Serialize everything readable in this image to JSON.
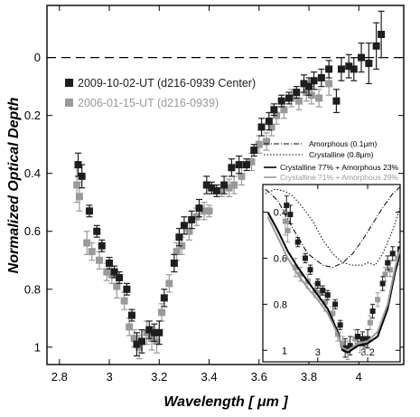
{
  "chart_data": {
    "type": "scatter",
    "ylabel": "Normalized Optical Depth",
    "xlabel": "Wavelength [ μm ]",
    "xlim": [
      2.75,
      4.18
    ],
    "ylim": [
      1.06,
      -0.18
    ],
    "y_inverted": true,
    "x_ticks": [
      "2.8",
      "3",
      "3.2",
      "3.4",
      "3.6",
      "3.8",
      "4"
    ],
    "x_tick_values": [
      2.8,
      3.0,
      3.2,
      3.4,
      3.6,
      3.8,
      4.0
    ],
    "y_ticks": [
      "0",
      "0.2",
      "0.4",
      "0.6",
      "0.8",
      "1"
    ],
    "y_tick_values": [
      0,
      0.2,
      0.4,
      0.6,
      0.8,
      1.0
    ],
    "zero_line": "dashed",
    "series": [
      {
        "name": "2009-10-02-UT (d216-0939 Center)",
        "color": "#1e1e1e",
        "marker": "square",
        "points": [
          [
            2.875,
            0.37,
            0.04
          ],
          [
            2.89,
            0.41,
            0.04
          ],
          [
            2.92,
            0.53,
            0.02
          ],
          [
            2.95,
            0.6,
            0.02
          ],
          [
            2.97,
            0.65,
            0.02
          ],
          [
            3.0,
            0.71,
            0.02
          ],
          [
            3.02,
            0.74,
            0.02
          ],
          [
            3.04,
            0.76,
            0.02
          ],
          [
            3.07,
            0.8,
            0.02
          ],
          [
            3.09,
            0.89,
            0.02
          ],
          [
            3.11,
            0.99,
            0.04
          ],
          [
            3.13,
            0.98,
            0.04
          ],
          [
            3.16,
            0.94,
            0.03
          ],
          [
            3.18,
            0.95,
            0.03
          ],
          [
            3.2,
            0.95,
            0.04
          ],
          [
            3.22,
            0.83,
            0.03
          ],
          [
            3.26,
            0.71,
            0.03
          ],
          [
            3.28,
            0.62,
            0.03
          ],
          [
            3.3,
            0.58,
            0.03
          ],
          [
            3.33,
            0.56,
            0.03
          ],
          [
            3.36,
            0.52,
            0.03
          ],
          [
            3.39,
            0.44,
            0.03
          ],
          [
            3.41,
            0.45,
            0.02
          ],
          [
            3.43,
            0.46,
            0.02
          ],
          [
            3.46,
            0.44,
            0.03
          ],
          [
            3.49,
            0.38,
            0.03
          ],
          [
            3.52,
            0.37,
            0.03
          ],
          [
            3.55,
            0.37,
            0.02
          ],
          [
            3.58,
            0.32,
            0.02
          ],
          [
            3.61,
            0.24,
            0.03
          ],
          [
            3.64,
            0.22,
            0.03
          ],
          [
            3.66,
            0.18,
            0.02
          ],
          [
            3.69,
            0.15,
            0.02
          ],
          [
            3.72,
            0.14,
            0.02
          ],
          [
            3.75,
            0.12,
            0.02
          ],
          [
            3.78,
            0.09,
            0.03
          ],
          [
            3.8,
            0.1,
            0.03
          ],
          [
            3.82,
            0.08,
            0.03
          ],
          [
            3.85,
            0.07,
            0.03
          ],
          [
            3.88,
            0.04,
            0.03
          ],
          [
            3.91,
            0.15,
            0.04
          ],
          [
            3.93,
            0.04,
            0.04
          ],
          [
            3.96,
            0.03,
            0.04
          ],
          [
            3.98,
            0.04,
            0.04
          ],
          [
            4.01,
            0.0,
            0.05
          ],
          [
            4.04,
            0.02,
            0.07
          ],
          [
            4.07,
            -0.04,
            0.08
          ],
          [
            4.09,
            -0.08,
            0.08
          ]
        ]
      },
      {
        "name": "2006-01-15-UT (d216-0939)",
        "color": "#9a9a9a",
        "marker": "square",
        "points": [
          [
            2.87,
            0.44,
            0.06
          ],
          [
            2.88,
            0.48,
            0.05
          ],
          [
            2.91,
            0.64,
            0.04
          ],
          [
            2.93,
            0.67,
            0.03
          ],
          [
            2.96,
            0.7,
            0.03
          ],
          [
            2.99,
            0.74,
            0.03
          ],
          [
            3.01,
            0.75,
            0.03
          ],
          [
            3.03,
            0.79,
            0.04
          ],
          [
            3.06,
            0.84,
            0.03
          ],
          [
            3.08,
            0.93,
            0.03
          ],
          [
            3.1,
            0.97,
            0.03
          ],
          [
            3.12,
            1.0,
            0.04
          ],
          [
            3.15,
            0.95,
            0.04
          ],
          [
            3.17,
            0.97,
            0.04
          ],
          [
            3.19,
            0.98,
            0.04
          ],
          [
            3.21,
            0.88,
            0.03
          ],
          [
            3.24,
            0.78,
            0.03
          ],
          [
            3.27,
            0.67,
            0.03
          ],
          [
            3.29,
            0.65,
            0.03
          ],
          [
            3.32,
            0.6,
            0.03
          ],
          [
            3.35,
            0.55,
            0.03
          ],
          [
            3.38,
            0.53,
            0.03
          ],
          [
            3.4,
            0.53,
            0.02
          ],
          [
            3.45,
            0.46,
            0.02
          ],
          [
            3.48,
            0.45,
            0.03
          ],
          [
            3.5,
            0.44,
            0.03
          ],
          [
            3.53,
            0.41,
            0.03
          ],
          [
            3.57,
            0.36,
            0.03
          ],
          [
            3.6,
            0.3,
            0.03
          ],
          [
            3.63,
            0.29,
            0.03
          ],
          [
            3.65,
            0.24,
            0.03
          ],
          [
            3.67,
            0.2,
            0.03
          ],
          [
            3.7,
            0.18,
            0.03
          ],
          [
            3.73,
            0.14,
            0.03
          ],
          [
            3.76,
            0.15,
            0.03
          ],
          [
            3.79,
            0.12,
            0.03
          ],
          [
            3.81,
            0.13,
            0.03
          ],
          [
            3.84,
            0.14,
            0.03
          ],
          [
            3.88,
            0.09,
            0.04
          ]
        ]
      }
    ],
    "legend": {
      "placement": "left",
      "entries": [
        {
          "label": "2009-10-02-UT (d216-0939 Center)",
          "color": "#1e1e1e"
        },
        {
          "label": "2006-01-15-UT (d216-0939)",
          "color": "#9a9a9a"
        }
      ]
    },
    "inset": {
      "placement": "bottom-right",
      "xlim": [
        2.78,
        3.33
      ],
      "ylim": [
        1.05,
        0.28
      ],
      "x_ticks": [
        "3",
        "3.2"
      ],
      "x_tick_values": [
        3.0,
        3.2
      ],
      "y_ticks": [
        "0.4",
        "0.6",
        "0.8",
        "1"
      ],
      "y_tick_values": [
        0.4,
        0.6,
        0.8,
        1.0
      ],
      "legend": [
        {
          "label": "Amorphous (0.1μm)",
          "style": "dashdot",
          "color": "#000000"
        },
        {
          "label": "Crystalline (0.8μm)",
          "style": "dotted",
          "color": "#000000"
        },
        {
          "label": "Crystalline 77% + Amorphous 23%",
          "style": "solid",
          "color": "#000000"
        },
        {
          "label": "Crystalline 71% + Amorphous 29%",
          "style": "solid",
          "color": "#9a9a9a"
        }
      ],
      "model_curves": [
        {
          "name": "Amorphous (0.1μm)",
          "style": "dashdot",
          "color": "#000000",
          "x": [
            2.79,
            2.84,
            2.9,
            2.96,
            3.02,
            3.06,
            3.1,
            3.14,
            3.18,
            3.22,
            3.26,
            3.3,
            3.33
          ],
          "y": [
            0.3,
            0.35,
            0.47,
            0.58,
            0.63,
            0.64,
            0.62,
            0.58,
            0.52,
            0.45,
            0.38,
            0.32,
            0.29
          ]
        },
        {
          "name": "Crystalline (0.8μm)",
          "style": "dotted",
          "color": "#000000",
          "x": [
            2.79,
            2.83,
            2.87,
            2.9,
            2.94,
            2.98,
            3.02,
            3.06,
            3.1,
            3.14,
            3.18,
            3.2,
            3.23,
            3.26,
            3.3,
            3.33
          ],
          "y": [
            0.32,
            0.3,
            0.31,
            0.33,
            0.38,
            0.44,
            0.52,
            0.58,
            0.62,
            0.63,
            0.63,
            0.62,
            0.63,
            0.58,
            0.48,
            0.38
          ]
        },
        {
          "name": "Crystalline 77% + Amorphous 23%",
          "style": "solid",
          "color": "#000000",
          "x": [
            2.8,
            2.84,
            2.88,
            2.92,
            2.96,
            3.0,
            3.04,
            3.08,
            3.1,
            3.12,
            3.16,
            3.2,
            3.24,
            3.28,
            3.31,
            3.33
          ],
          "y": [
            0.4,
            0.48,
            0.57,
            0.64,
            0.7,
            0.76,
            0.82,
            0.92,
            1.0,
            1.01,
            0.98,
            0.97,
            0.94,
            0.82,
            0.66,
            0.58
          ]
        },
        {
          "name": "Crystalline 71% + Amorphous 29%",
          "style": "solid",
          "color": "#9a9a9a",
          "x": [
            2.8,
            2.84,
            2.88,
            2.92,
            2.96,
            3.0,
            3.04,
            3.08,
            3.1,
            3.12,
            3.16,
            3.2,
            3.24,
            3.28,
            3.31,
            3.33
          ],
          "y": [
            0.42,
            0.51,
            0.6,
            0.67,
            0.73,
            0.78,
            0.84,
            0.93,
            0.99,
            1.0,
            0.97,
            0.96,
            0.92,
            0.8,
            0.64,
            0.56
          ]
        }
      ]
    }
  }
}
